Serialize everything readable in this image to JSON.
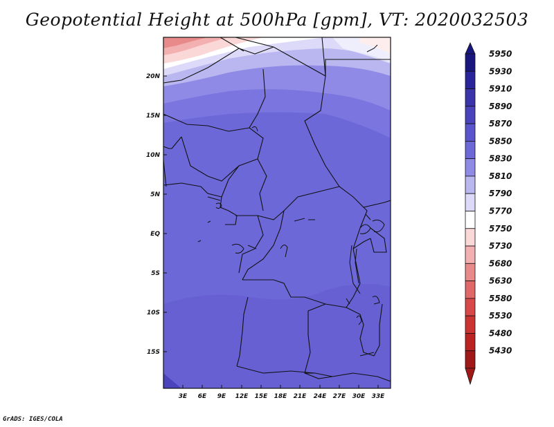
{
  "title": "Geopotential Height at 500hPa [gpm], VT: 2020032503",
  "credit": "GrADS: IGES/COLA",
  "map": {
    "lat_labels": [
      "20N",
      "15N",
      "10N",
      "5N",
      "EQ",
      "5S",
      "10S",
      "15S"
    ],
    "lon_labels": [
      "3E",
      "6E",
      "9E",
      "12E",
      "15E",
      "18E",
      "21E",
      "24E",
      "27E",
      "30E",
      "33E"
    ]
  },
  "colorbar": {
    "levels": [
      "5950",
      "5930",
      "5910",
      "5890",
      "5870",
      "5850",
      "5830",
      "5810",
      "5790",
      "5770",
      "5750",
      "5730",
      "5680",
      "5630",
      "5580",
      "5530",
      "5480",
      "5430"
    ],
    "colors": [
      "#1a1680",
      "#2a249a",
      "#3a33aa",
      "#4a43bb",
      "#5a55cc",
      "#6c68d8",
      "#8f8ae6",
      "#b9b6f0",
      "#dcdaf8",
      "#ffffff",
      "#fbd8d8",
      "#f3b0b0",
      "#e88a8a",
      "#e06868",
      "#d84848",
      "#cc3333",
      "#bb2222",
      "#a01818"
    ]
  }
}
